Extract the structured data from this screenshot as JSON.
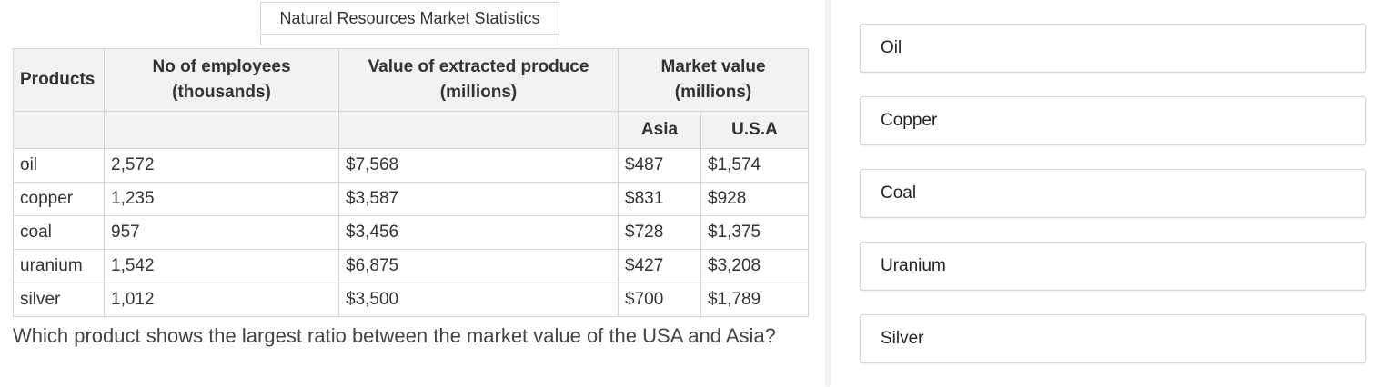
{
  "table": {
    "caption": "Natural Resources Market Statistics",
    "headers": {
      "products": "Products",
      "employees": "No of employees (thousands)",
      "extracted": "Value of extracted produce (millions)",
      "market": "Market value (millions)",
      "asia": "Asia",
      "usa": "U.S.A"
    },
    "rows": [
      {
        "product": "oil",
        "employees": "2,572",
        "extracted": "$7,568",
        "asia": "$487",
        "usa": "$1,574"
      },
      {
        "product": "copper",
        "employees": "1,235",
        "extracted": "$3,587",
        "asia": "$831",
        "usa": "$928"
      },
      {
        "product": "coal",
        "employees": "957",
        "extracted": "$3,456",
        "asia": "$728",
        "usa": "$1,375"
      },
      {
        "product": "uranium",
        "employees": "1,542",
        "extracted": "$6,875",
        "asia": "$427",
        "usa": "$3,208"
      },
      {
        "product": "silver",
        "employees": "1,012",
        "extracted": "$3,500",
        "asia": "$700",
        "usa": "$1,789"
      }
    ]
  },
  "question": "Which product shows the largest ratio between the market value of the USA and Asia?",
  "options": [
    "Oil",
    "Copper",
    "Coal",
    "Uranium",
    "Silver"
  ]
}
